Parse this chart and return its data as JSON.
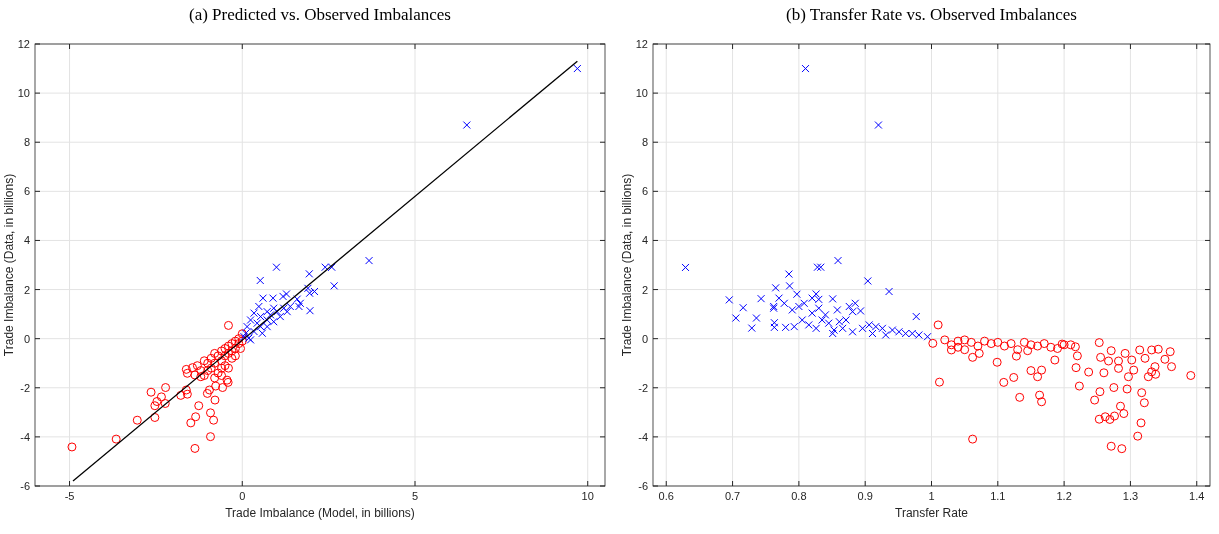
{
  "chart_data": [
    {
      "type": "scatter",
      "title": "(a)  Predicted vs. Observed Imbalances",
      "xlabel": "Trade Imbalance (Model, in billions)",
      "ylabel": "Trade Imbalance (Data, in billions)",
      "xlim": [
        -6,
        10.5
      ],
      "ylim": [
        -6,
        12
      ],
      "xticks": [
        -5,
        0,
        5,
        10
      ],
      "yticks": [
        -6,
        -4,
        -2,
        0,
        2,
        4,
        6,
        8,
        10,
        12
      ],
      "grid": true,
      "series": [
        {
          "marker": "circle",
          "color": "#ff0000",
          "x": [
            -4.93,
            -3.65,
            -3.04,
            -2.64,
            -2.53,
            -2.53,
            -2.47,
            -2.34,
            -2.22,
            -2.23,
            -1.78,
            -1.62,
            -1.59,
            -1.49,
            -1.35,
            -1.37,
            -1.26,
            -1.62,
            -1.59,
            -1.44,
            -1.37,
            -1.2,
            -1.01,
            -0.95,
            -0.77,
            -0.79,
            -0.92,
            -0.83,
            -0.92,
            -0.57,
            -0.41,
            -0.4,
            -0.44,
            -1.3,
            -1.2,
            -1.1,
            -1.0,
            -1.0,
            -0.9,
            -0.9,
            -0.8,
            -0.8,
            -0.7,
            -0.7,
            -0.6,
            -0.6,
            -0.6,
            -0.5,
            -0.5,
            -0.5,
            -0.4,
            -0.4,
            -0.3,
            -0.3,
            -0.3,
            -0.2,
            -0.2,
            -0.1,
            -0.1,
            0,
            0,
            -0.05,
            -1.1,
            -0.8,
            -0.6,
            -0.4,
            -0.2
          ],
          "values": [
            -4.41,
            -4.09,
            -3.32,
            -2.18,
            -3.21,
            -2.73,
            -2.56,
            -2.37,
            -1.99,
            -2.64,
            -2.31,
            -2.09,
            -2.26,
            -3.43,
            -3.18,
            -4.47,
            -2.73,
            -1.25,
            -1.41,
            -1.18,
            -1.48,
            -1.55,
            -2.23,
            -2.09,
            -1.93,
            -2.5,
            -3.02,
            -3.32,
            -3.99,
            -1.99,
            -1.78,
            0.54,
            -1.69,
            -1.1,
            -1.3,
            -0.9,
            -1.0,
            -1.3,
            -0.8,
            -1.2,
            -0.6,
            -1.0,
            -0.7,
            -1.4,
            -0.5,
            -0.9,
            -1.2,
            -0.4,
            -0.7,
            -1.1,
            -0.3,
            -0.6,
            -0.2,
            -0.5,
            -0.8,
            -0.1,
            -0.4,
            0,
            -0.2,
            -0.1,
            0.2,
            -0.4,
            -1.5,
            -1.6,
            -1.5,
            -1.2,
            -0.7
          ]
        },
        {
          "marker": "cross",
          "color": "#0000ff",
          "x": [
            0.99,
            0.52,
            1.94,
            2.4,
            2.59,
            3.67,
            2.66,
            1.96,
            1.9,
            2.09,
            1.95,
            1.28,
            0.6,
            0.89,
            1.18,
            1.59,
            1.68,
            1.64,
            1.39,
            1.2,
            0.91,
            0.72,
            0.48,
            0.34,
            0.53,
            0.82,
            1.1,
            0.72,
            0.43,
            0.24,
            0.14,
            0.34,
            0.53,
            0.1,
            0.19,
            0.05,
            0.72,
            0.91,
            1.3,
            1.01,
            0.58,
            0.24,
            6.5,
            9.7
          ],
          "values": [
            2.91,
            2.37,
            2.64,
            2.91,
            2.91,
            3.18,
            2.15,
            1.14,
            2.05,
            1.92,
            1.85,
            1.82,
            1.65,
            1.65,
            1.72,
            1.61,
            1.44,
            1.31,
            1.31,
            1.24,
            1.24,
            1.1,
            1.31,
            1.04,
            0.9,
            0.97,
            0.9,
            0.76,
            0.63,
            0.76,
            0.49,
            0.29,
            0.49,
            0.22,
            0.02,
            0.08,
            0.49,
            0.69,
            1.1,
            1.1,
            0.22,
            -0.05,
            8.7,
            11.0
          ]
        },
        {
          "type": "line",
          "marker": "none",
          "line_style": "solid",
          "color": "#000000",
          "x": [
            -4.9,
            9.7
          ],
          "values": [
            -5.8,
            11.3
          ]
        }
      ]
    },
    {
      "type": "scatter",
      "title": "(b)  Transfer Rate vs. Observed Imbalances",
      "xlabel": "Transfer Rate",
      "ylabel": "Trade Imbalance (Data, in billions)",
      "xlim": [
        0.58,
        1.42
      ],
      "ylim": [
        -6,
        12
      ],
      "xticks": [
        0.6,
        0.7,
        0.8,
        0.9,
        1,
        1.1,
        1.2,
        1.3,
        1.4
      ],
      "yticks": [
        -6,
        -4,
        -2,
        0,
        2,
        4,
        6,
        8,
        10,
        12
      ],
      "grid": true,
      "series": [
        {
          "marker": "cross",
          "color": "#0000ff",
          "x": [
            0.629,
            0.695,
            0.705,
            0.716,
            0.729,
            0.736,
            0.743,
            0.762,
            0.762,
            0.765,
            0.763,
            0.763,
            0.77,
            0.778,
            0.78,
            0.785,
            0.786,
            0.79,
            0.793,
            0.797,
            0.8,
            0.808,
            0.82,
            0.826,
            0.828,
            0.833,
            0.83,
            0.851,
            0.859,
            0.805,
            0.815,
            0.826,
            0.82,
            0.83,
            0.835,
            0.84,
            0.845,
            0.853,
            0.858,
            0.861,
            0.866,
            0.871,
            0.876,
            0.881,
            0.885,
            0.893,
            0.904,
            0.896,
            0.906,
            0.916,
            0.926,
            0.936,
            0.941,
            0.951,
            0.961,
            0.977,
            0.971,
            0.981,
            0.994,
            0.851,
            0.881,
            0.911,
            0.931,
            0.81,
            0.92
          ],
          "values": [
            2.9,
            1.58,
            0.84,
            1.26,
            0.43,
            0.84,
            1.63,
            1.31,
            1.24,
            2.07,
            0.65,
            0.46,
            1.65,
            1.44,
            0.46,
            2.63,
            2.15,
            1.17,
            0.49,
            1.81,
            1.31,
            1.44,
            1.65,
            1.82,
            2.91,
            2.91,
            1.6,
            1.62,
            3.18,
            0.76,
            0.56,
            0.42,
            1.04,
            1.24,
            0.76,
            0.97,
            0.63,
            0.35,
            1.17,
            0.69,
            0.42,
            0.76,
            1.31,
            1.1,
            1.44,
            1.13,
            2.35,
            0.42,
            0.56,
            0.49,
            0.42,
            1.92,
            0.35,
            0.28,
            0.21,
            0.9,
            0.21,
            0.15,
            0.08,
            0.21,
            0.28,
            0.21,
            0.15,
            11.0,
            8.7
          ]
        },
        {
          "marker": "circle",
          "color": "#ff0000",
          "x": [
            1.01,
            1.002,
            1.012,
            1.03,
            1.062,
            1.062,
            1.072,
            1.099,
            1.109,
            1.124,
            1.133,
            1.128,
            1.145,
            1.15,
            1.16,
            1.163,
            1.166,
            1.166,
            1.186,
            1.197,
            1.217,
            1.22,
            1.218,
            1.223,
            1.237,
            1.246,
            1.253,
            1.255,
            1.254,
            1.253,
            1.26,
            1.262,
            1.267,
            1.271,
            1.271,
            1.269,
            1.276,
            1.275,
            1.282,
            1.285,
            1.29,
            1.287,
            1.295,
            1.292,
            1.297,
            1.305,
            1.311,
            1.314,
            1.316,
            1.317,
            1.321,
            1.322,
            1.327,
            1.332,
            1.337,
            1.342,
            1.352,
            1.36,
            1.362,
            1.391,
            1.282,
            1.302,
            1.332,
            1.338,
            1.02,
            1.04,
            1.05,
            1.06,
            1.08,
            1.09,
            1.1,
            1.11,
            1.12,
            1.14,
            1.15,
            1.16,
            1.17,
            1.18,
            1.19,
            1.2,
            1.07,
            1.04,
            1.03,
            1.13,
            1.21,
            1.05
          ],
          "values": [
            0.56,
            -0.19,
            -1.77,
            -0.46,
            -0.76,
            -4.09,
            -0.6,
            -0.96,
            -1.78,
            -1.58,
            -2.39,
            -0.71,
            -0.49,
            -1.3,
            -1.55,
            -2.3,
            -2.57,
            -1.28,
            -0.87,
            -0.22,
            -0.33,
            -0.7,
            -1.18,
            -1.93,
            -1.36,
            -2.5,
            -0.16,
            -0.76,
            -2.16,
            -3.28,
            -1.39,
            -3.18,
            -0.91,
            -0.49,
            -4.38,
            -3.29,
            -3.15,
            -1.99,
            -1.21,
            -2.75,
            -3.05,
            -4.48,
            -2.05,
            -0.6,
            -1.55,
            -1.28,
            -3.97,
            -0.46,
            -3.43,
            -2.2,
            -2.61,
            -0.8,
            -1.55,
            -0.46,
            -1.14,
            -0.43,
            -0.84,
            -0.53,
            -1.14,
            -1.5,
            -0.91,
            -0.87,
            -1.35,
            -1.45,
            -0.05,
            -0.1,
            -0.05,
            -0.15,
            -0.1,
            -0.2,
            -0.15,
            -0.3,
            -0.2,
            -0.15,
            -0.25,
            -0.3,
            -0.2,
            -0.35,
            -0.4,
            -0.25,
            -0.3,
            -0.35,
            -0.25,
            -0.45,
            -0.25,
            -0.45
          ]
        }
      ]
    }
  ]
}
